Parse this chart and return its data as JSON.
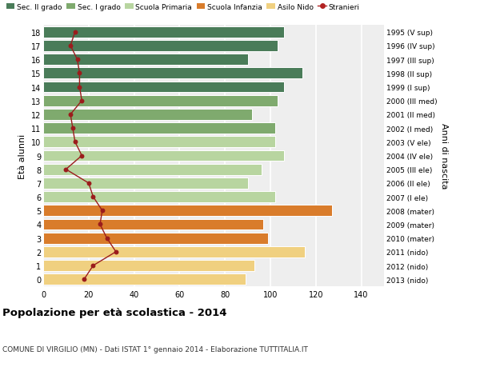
{
  "ages": [
    18,
    17,
    16,
    15,
    14,
    13,
    12,
    11,
    10,
    9,
    8,
    7,
    6,
    5,
    4,
    3,
    2,
    1,
    0
  ],
  "bar_values": [
    106,
    103,
    90,
    114,
    106,
    103,
    92,
    102,
    102,
    106,
    96,
    90,
    102,
    127,
    97,
    99,
    115,
    93,
    89
  ],
  "stranieri": [
    14,
    12,
    15,
    16,
    16,
    17,
    12,
    13,
    14,
    17,
    10,
    20,
    22,
    26,
    25,
    28,
    32,
    22,
    18
  ],
  "right_labels": [
    "1995 (V sup)",
    "1996 (IV sup)",
    "1997 (III sup)",
    "1998 (II sup)",
    "1999 (I sup)",
    "2000 (III med)",
    "2001 (II med)",
    "2002 (I med)",
    "2003 (V ele)",
    "2004 (IV ele)",
    "2005 (III ele)",
    "2006 (II ele)",
    "2007 (I ele)",
    "2008 (mater)",
    "2009 (mater)",
    "2010 (mater)",
    "2011 (nido)",
    "2012 (nido)",
    "2013 (nido)"
  ],
  "bar_colors": [
    "#4a7c59",
    "#4a7c59",
    "#4a7c59",
    "#4a7c59",
    "#4a7c59",
    "#7faa6e",
    "#7faa6e",
    "#7faa6e",
    "#b8d5a0",
    "#b8d5a0",
    "#b8d5a0",
    "#b8d5a0",
    "#b8d5a0",
    "#d97c2b",
    "#d97c2b",
    "#d97c2b",
    "#f0d080",
    "#f0d080",
    "#f0d080"
  ],
  "legend_labels": [
    "Sec. II grado",
    "Sec. I grado",
    "Scuola Primaria",
    "Scuola Infanzia",
    "Asilo Nido",
    "Stranieri"
  ],
  "legend_colors": [
    "#4a7c59",
    "#7faa6e",
    "#b8d5a0",
    "#d97c2b",
    "#f0d080",
    "#b22222"
  ],
  "title": "Popolazione per età scolastica - 2014",
  "subtitle": "COMUNE DI VIRGILIO (MN) - Dati ISTAT 1° gennaio 2014 - Elaborazione TUTTITALIA.IT",
  "ylabel_left": "Età alunni",
  "ylabel_right": "Anni di nascita",
  "xlim": [
    0,
    150
  ],
  "xticks": [
    0,
    20,
    40,
    60,
    80,
    100,
    120,
    140
  ],
  "background_color": "#ffffff",
  "plot_bg_color": "#eeeeee",
  "grid_color": "#ffffff",
  "stranieri_color": "#9b1c1c",
  "bar_edge_color": "#ffffff"
}
